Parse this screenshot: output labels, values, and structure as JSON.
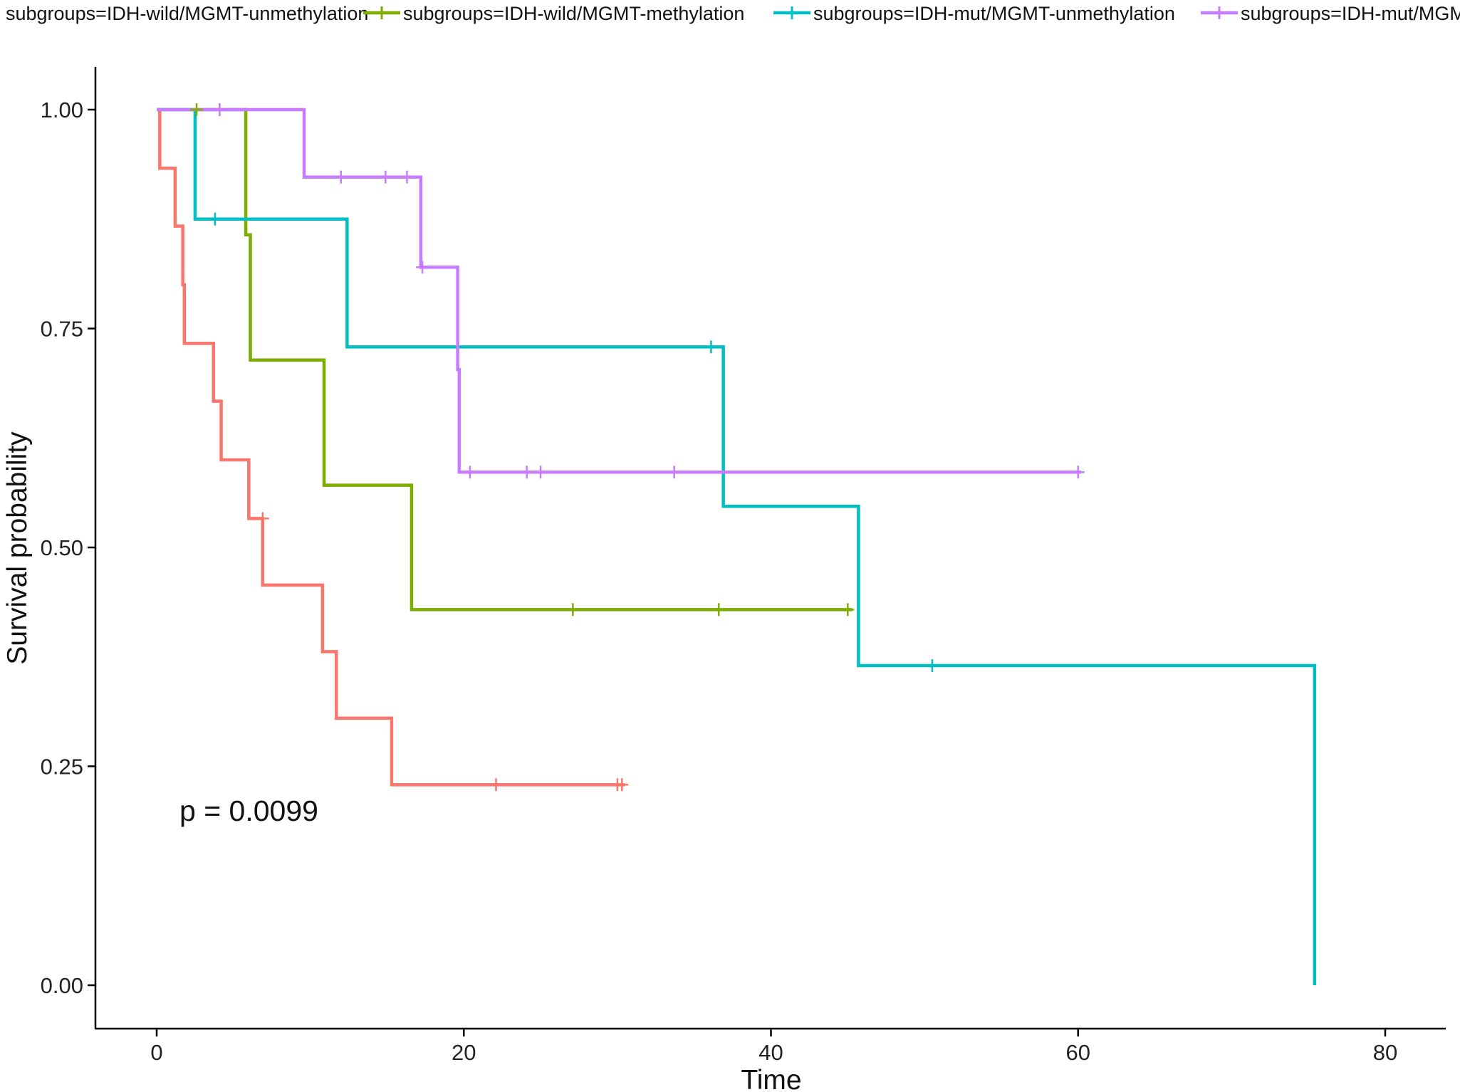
{
  "chart_data": {
    "type": "line",
    "subtype": "kaplan-meier step",
    "title": "",
    "xlabel": "Time",
    "ylabel": "Survival probability",
    "xlim": [
      -4.5,
      84.5
    ],
    "ylim": [
      -0.05,
      1.05
    ],
    "x_ticks": [
      0,
      20,
      40,
      60,
      80
    ],
    "y_ticks": [
      0,
      0.25,
      0.5,
      0.75,
      1.0
    ],
    "x_tick_labels": [
      "0",
      "20",
      "40",
      "60",
      "80"
    ],
    "y_tick_labels": [
      "0.00",
      "0.25",
      "0.50",
      "0.75",
      "1.00"
    ],
    "grid": false,
    "legend_position": "top",
    "annotation": "p = 0.0099",
    "series": [
      {
        "name": "subgroups=IDH-wild/MGMT-unmethylation",
        "color": "#F8766D",
        "steps": [
          [
            0,
            1.0
          ],
          [
            0.2,
            0.933
          ],
          [
            1.2,
            0.867
          ],
          [
            1.7,
            0.8
          ],
          [
            1.8,
            0.733
          ],
          [
            3.7,
            0.667
          ],
          [
            4.2,
            0.6
          ],
          [
            6.0,
            0.533
          ],
          [
            6.9,
            0.457
          ],
          [
            10.8,
            0.381
          ],
          [
            11.7,
            0.305
          ],
          [
            15.3,
            0.229
          ],
          [
            30.5,
            0.229
          ]
        ],
        "censor_x": [
          6.9,
          22.1,
          30.0,
          30.3
        ],
        "censor_y": [
          0.533,
          0.229,
          0.229,
          0.229
        ]
      },
      {
        "name": "subgroups=IDH-wild/MGMT-methylation",
        "color": "#7CAE00",
        "steps": [
          [
            0,
            1.0
          ],
          [
            5.8,
            0.857
          ],
          [
            6.1,
            0.714
          ],
          [
            10.9,
            0.571
          ],
          [
            16.6,
            0.429
          ],
          [
            45.3,
            0.429
          ]
        ],
        "censor_x": [
          2.6,
          27.1,
          36.6,
          45.0
        ],
        "censor_y": [
          1.0,
          0.429,
          0.429,
          0.429
        ]
      },
      {
        "name": "subgroups=IDH-mut/MGMT-unmethylation",
        "color": "#00BFC4",
        "steps": [
          [
            0,
            1.0
          ],
          [
            2.5,
            0.875
          ],
          [
            12.4,
            0.729
          ],
          [
            36.9,
            0.547
          ],
          [
            45.7,
            0.365
          ],
          [
            75.4,
            0.0
          ]
        ],
        "censor_x": [
          3.8,
          36.1,
          50.5
        ],
        "censor_y": [
          0.875,
          0.729,
          0.365
        ]
      },
      {
        "name": "subgroups=IDH-mut/MGMT-methylation",
        "color": "#C77CFF",
        "steps": [
          [
            0,
            1.0
          ],
          [
            9.6,
            0.923
          ],
          [
            17.2,
            0.82
          ],
          [
            19.6,
            0.703
          ],
          [
            19.7,
            0.586
          ],
          [
            60.2,
            0.586
          ]
        ],
        "censor_x": [
          4.1,
          12.0,
          14.9,
          16.3,
          17.3,
          20.4,
          24.1,
          25.0,
          33.7,
          60.0
        ],
        "censor_y": [
          1.0,
          0.923,
          0.923,
          0.923,
          0.82,
          0.586,
          0.586,
          0.586,
          0.586,
          0.586
        ]
      }
    ]
  }
}
